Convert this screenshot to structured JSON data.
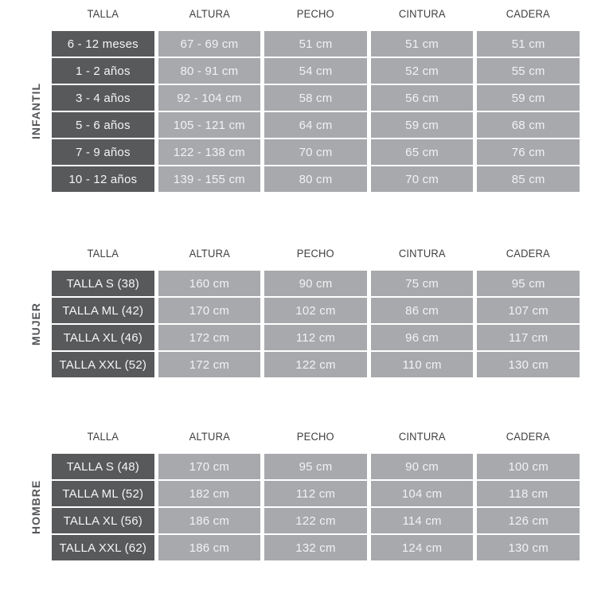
{
  "colors": {
    "label_column_background": "#58595b",
    "data_cell_background": "#a7a9ac",
    "header_text": "#3f4041",
    "cell_text": "#f2f2f3",
    "page_background": "#ffffff"
  },
  "chart_data": [
    {
      "type": "table",
      "title": "INFANTIL",
      "columns": [
        "TALLA",
        "ALTURA",
        "PECHO",
        "CINTURA",
        "CADERA"
      ],
      "rows": [
        [
          "6 - 12 meses",
          "67 - 69 cm",
          "51 cm",
          "51 cm",
          "51 cm"
        ],
        [
          "1 - 2 años",
          "80 - 91 cm",
          "54 cm",
          "52 cm",
          "55 cm"
        ],
        [
          "3 - 4 años",
          "92 - 104 cm",
          "58 cm",
          "56 cm",
          "59 cm"
        ],
        [
          "5 - 6 años",
          "105 - 121 cm",
          "64 cm",
          "59 cm",
          "68 cm"
        ],
        [
          "7 - 9 años",
          "122 - 138 cm",
          "70 cm",
          "65 cm",
          "76 cm"
        ],
        [
          "10 - 12 años",
          "139 - 155 cm",
          "80 cm",
          "70 cm",
          "85 cm"
        ]
      ]
    },
    {
      "type": "table",
      "title": "MUJER",
      "columns": [
        "TALLA",
        "ALTURA",
        "PECHO",
        "CINTURA",
        "CADERA"
      ],
      "rows": [
        [
          "TALLA S (38)",
          "160 cm",
          "90 cm",
          "75 cm",
          "95 cm"
        ],
        [
          "TALLA ML (42)",
          "170 cm",
          "102 cm",
          "86 cm",
          "107 cm"
        ],
        [
          "TALLA XL (46)",
          "172 cm",
          "112 cm",
          "96 cm",
          "117 cm"
        ],
        [
          "TALLA XXL (52)",
          "172 cm",
          "122 cm",
          "110 cm",
          "130 cm"
        ]
      ]
    },
    {
      "type": "table",
      "title": "HOMBRE",
      "columns": [
        "TALLA",
        "ALTURA",
        "PECHO",
        "CINTURA",
        "CADERA"
      ],
      "rows": [
        [
          "TALLA S (48)",
          "170 cm",
          "95 cm",
          "90 cm",
          "100 cm"
        ],
        [
          "TALLA ML (52)",
          "182 cm",
          "112 cm",
          "104 cm",
          "118 cm"
        ],
        [
          "TALLA XL (56)",
          "186 cm",
          "122 cm",
          "114 cm",
          "126 cm"
        ],
        [
          "TALLA XXL (62)",
          "186 cm",
          "132 cm",
          "124 cm",
          "130 cm"
        ]
      ]
    }
  ]
}
